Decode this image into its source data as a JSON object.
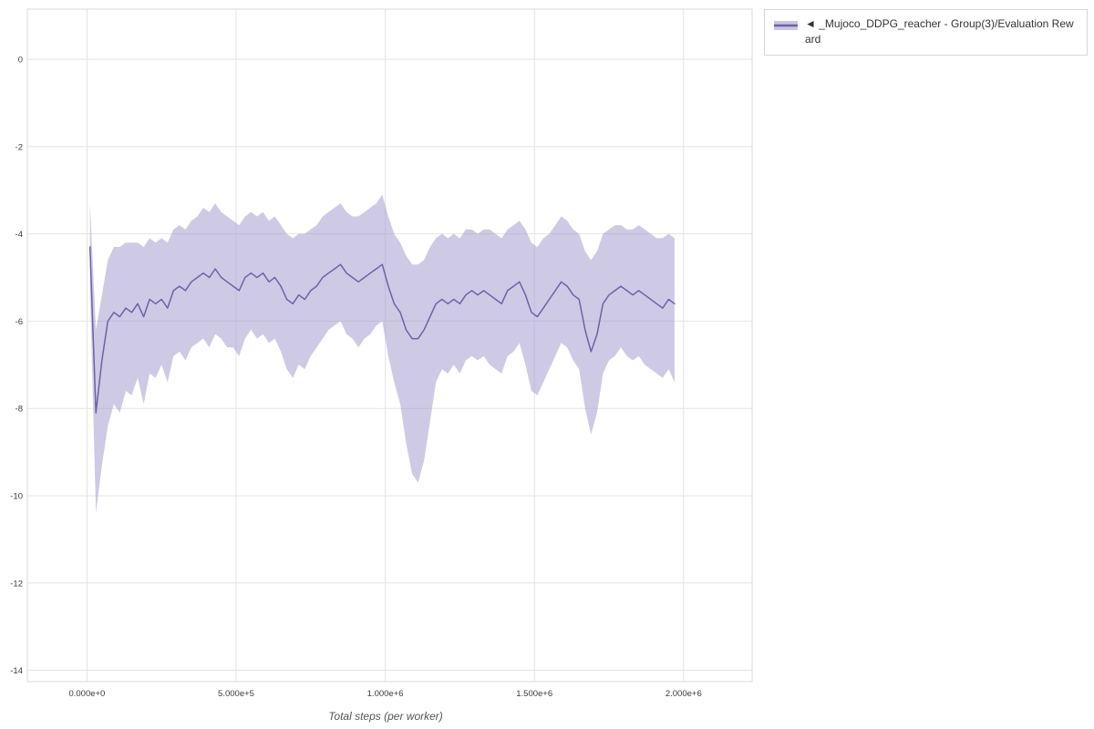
{
  "legend": {
    "toggle_icon": "◄",
    "label": "_Mujoco_DDPG_reacher - Group(3)/Evaluation Reward"
  },
  "colors": {
    "line": "#6a63ab",
    "band": "#9d95cc",
    "grid": "#e4e4e4",
    "plot_border": "#d8d8d8",
    "tick_text": "#3c3c3c",
    "axis_title_text": "#555555",
    "legend_border": "#d6d6d6",
    "legend_text": "#333333"
  },
  "chart_data": {
    "type": "line",
    "title": "",
    "xlabel": "Total steps (per worker)",
    "ylabel": "",
    "grid": true,
    "legend_position": "top-right",
    "xlim": [
      -200000,
      2230000
    ],
    "ylim": [
      -14.26,
      1.15
    ],
    "x_ticks": [
      {
        "value": 0,
        "label": "0.000e+0"
      },
      {
        "value": 500000,
        "label": "5.000e+5"
      },
      {
        "value": 1000000,
        "label": "1.000e+6"
      },
      {
        "value": 1500000,
        "label": "1.500e+6"
      },
      {
        "value": 2000000,
        "label": "2.000e+6"
      }
    ],
    "y_ticks": [
      {
        "value": 0,
        "label": "0"
      },
      {
        "value": -2,
        "label": "-2"
      },
      {
        "value": -4,
        "label": "-4"
      },
      {
        "value": -6,
        "label": "-6"
      },
      {
        "value": -8,
        "label": "-8"
      },
      {
        "value": -10,
        "label": "-10"
      },
      {
        "value": -12,
        "label": "-12"
      },
      {
        "value": -14,
        "label": "-14"
      }
    ],
    "series": [
      {
        "name": "_Mujoco_DDPG_reacher - Group(3)/Evaluation Reward",
        "x": [
          10000,
          30000,
          50000,
          70000,
          90000,
          110000,
          130000,
          150000,
          170000,
          190000,
          210000,
          230000,
          250000,
          270000,
          290000,
          310000,
          330000,
          350000,
          370000,
          390000,
          410000,
          430000,
          450000,
          470000,
          490000,
          510000,
          530000,
          550000,
          570000,
          590000,
          610000,
          630000,
          650000,
          670000,
          690000,
          710000,
          730000,
          750000,
          770000,
          790000,
          810000,
          830000,
          850000,
          870000,
          890000,
          910000,
          930000,
          950000,
          970000,
          990000,
          1010000,
          1030000,
          1050000,
          1070000,
          1090000,
          1110000,
          1130000,
          1150000,
          1170000,
          1190000,
          1210000,
          1230000,
          1250000,
          1270000,
          1290000,
          1310000,
          1330000,
          1350000,
          1370000,
          1390000,
          1410000,
          1430000,
          1450000,
          1470000,
          1490000,
          1510000,
          1530000,
          1550000,
          1570000,
          1590000,
          1610000,
          1630000,
          1650000,
          1670000,
          1690000,
          1710000,
          1730000,
          1750000,
          1770000,
          1790000,
          1810000,
          1830000,
          1850000,
          1870000,
          1890000,
          1910000,
          1930000,
          1950000,
          1970000
        ],
        "mean": [
          -4.3,
          -8.1,
          -6.9,
          -6.0,
          -5.8,
          -5.9,
          -5.7,
          -5.8,
          -5.6,
          -5.9,
          -5.5,
          -5.6,
          -5.5,
          -5.7,
          -5.3,
          -5.2,
          -5.3,
          -5.1,
          -5.0,
          -4.9,
          -5.0,
          -4.8,
          -5.0,
          -5.1,
          -5.2,
          -5.3,
          -5.0,
          -4.9,
          -5.0,
          -4.9,
          -5.1,
          -5.0,
          -5.2,
          -5.5,
          -5.6,
          -5.4,
          -5.5,
          -5.3,
          -5.2,
          -5.0,
          -4.9,
          -4.8,
          -4.7,
          -4.9,
          -5.0,
          -5.1,
          -5.0,
          -4.9,
          -4.8,
          -4.7,
          -5.2,
          -5.6,
          -5.8,
          -6.2,
          -6.4,
          -6.4,
          -6.2,
          -5.9,
          -5.6,
          -5.5,
          -5.6,
          -5.5,
          -5.6,
          -5.4,
          -5.3,
          -5.4,
          -5.3,
          -5.4,
          -5.5,
          -5.6,
          -5.3,
          -5.2,
          -5.1,
          -5.4,
          -5.8,
          -5.9,
          -5.7,
          -5.5,
          -5.3,
          -5.1,
          -5.2,
          -5.4,
          -5.5,
          -6.2,
          -6.7,
          -6.3,
          -5.6,
          -5.4,
          -5.3,
          -5.2,
          -5.3,
          -5.4,
          -5.3,
          -5.4,
          -5.5,
          -5.6,
          -5.7,
          -5.5,
          -5.6
        ],
        "upper": [
          -3.3,
          -6.2,
          -5.4,
          -4.6,
          -4.3,
          -4.3,
          -4.2,
          -4.2,
          -4.2,
          -4.3,
          -4.1,
          -4.2,
          -4.1,
          -4.2,
          -3.9,
          -3.8,
          -3.9,
          -3.7,
          -3.6,
          -3.4,
          -3.5,
          -3.3,
          -3.5,
          -3.6,
          -3.7,
          -3.8,
          -3.6,
          -3.5,
          -3.6,
          -3.5,
          -3.7,
          -3.6,
          -3.8,
          -4.0,
          -4.1,
          -4.0,
          -4.0,
          -3.9,
          -3.8,
          -3.6,
          -3.5,
          -3.4,
          -3.3,
          -3.5,
          -3.6,
          -3.6,
          -3.5,
          -3.4,
          -3.3,
          -3.1,
          -3.6,
          -4.0,
          -4.2,
          -4.5,
          -4.7,
          -4.7,
          -4.6,
          -4.3,
          -4.1,
          -4.0,
          -4.1,
          -4.0,
          -4.1,
          -3.9,
          -3.9,
          -4.0,
          -3.9,
          -3.9,
          -4.0,
          -4.1,
          -3.9,
          -3.8,
          -3.7,
          -3.9,
          -4.2,
          -4.3,
          -4.1,
          -4.0,
          -3.8,
          -3.6,
          -3.7,
          -3.9,
          -4.0,
          -4.4,
          -4.6,
          -4.4,
          -4.0,
          -3.9,
          -3.8,
          -3.8,
          -3.9,
          -3.9,
          -3.8,
          -3.9,
          -4.0,
          -4.1,
          -4.1,
          -4.0,
          -4.1
        ],
        "lower": [
          -5.2,
          -10.4,
          -9.3,
          -8.4,
          -7.9,
          -8.1,
          -7.6,
          -7.7,
          -7.3,
          -7.9,
          -7.2,
          -7.3,
          -7.0,
          -7.4,
          -6.8,
          -6.7,
          -6.9,
          -6.6,
          -6.5,
          -6.4,
          -6.6,
          -6.3,
          -6.4,
          -6.6,
          -6.6,
          -6.8,
          -6.4,
          -6.2,
          -6.4,
          -6.3,
          -6.5,
          -6.4,
          -6.7,
          -7.1,
          -7.3,
          -7.0,
          -7.1,
          -6.8,
          -6.6,
          -6.4,
          -6.2,
          -6.1,
          -6.0,
          -6.3,
          -6.4,
          -6.6,
          -6.4,
          -6.3,
          -6.1,
          -6.0,
          -6.8,
          -7.4,
          -7.9,
          -8.8,
          -9.5,
          -9.7,
          -9.2,
          -8.3,
          -7.4,
          -7.1,
          -7.2,
          -7.0,
          -7.2,
          -6.9,
          -6.8,
          -6.9,
          -6.8,
          -7.0,
          -7.1,
          -7.2,
          -6.8,
          -6.7,
          -6.5,
          -7.0,
          -7.6,
          -7.7,
          -7.4,
          -7.1,
          -6.8,
          -6.5,
          -6.6,
          -6.9,
          -7.1,
          -8.0,
          -8.6,
          -8.1,
          -7.2,
          -6.9,
          -6.8,
          -6.6,
          -6.8,
          -6.9,
          -6.8,
          -7.0,
          -7.1,
          -7.2,
          -7.3,
          -7.1,
          -7.4
        ]
      }
    ]
  }
}
